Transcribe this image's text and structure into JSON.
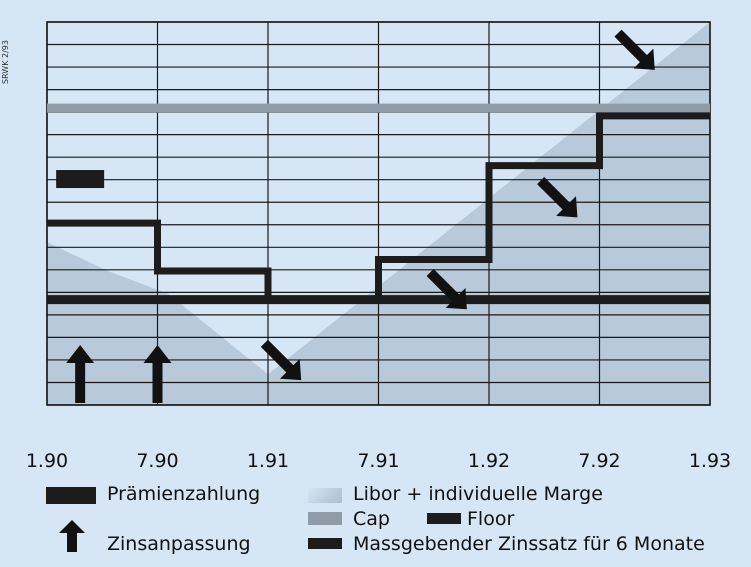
{
  "side_label": "SRWK 2/93",
  "colors": {
    "background": "#d6e6f4",
    "libor_area": "#b8c9da",
    "cap": "#8f9ba6",
    "floor": "#1c1c1c",
    "rate": "#1c1c1c",
    "grid": "#1a1a1a"
  },
  "chart_data": {
    "type": "line",
    "title": "",
    "xlabel": "",
    "ylabel": "",
    "x_ticks": [
      "1.90",
      "7.90",
      "1.91",
      "7.91",
      "1.92",
      "7.92",
      "1.93"
    ],
    "xlim": [
      0,
      6
    ],
    "ylim": [
      0,
      20
    ],
    "grid": true,
    "series": [
      {
        "name": "Libor + individuelle Marge",
        "style": "area",
        "x": [
          0,
          0.55,
          1.1,
          2.0,
          6.0
        ],
        "y": [
          8.5,
          7.0,
          5.8,
          1.6,
          20.0
        ]
      },
      {
        "name": "Cap",
        "style": "hline",
        "y": 15.5
      },
      {
        "name": "Floor",
        "style": "hline",
        "y": 5.5
      },
      {
        "name": "Massgebender Zinssatz für 6 Monate",
        "style": "step",
        "x": [
          0,
          1,
          2,
          3,
          4,
          5,
          6
        ],
        "y": [
          9.5,
          7.0,
          5.5,
          7.6,
          12.5,
          15.1,
          15.1
        ]
      }
    ],
    "markers": {
      "praemienzahlung": [
        {
          "x": 0.3,
          "y": 11.8
        }
      ],
      "zinsanpassung": [
        {
          "x": 0.3
        },
        {
          "x": 1.0
        }
      ],
      "pointer_arrows": [
        {
          "x": 5.5,
          "y": 17.5
        },
        {
          "x": 4.8,
          "y": 9.8
        },
        {
          "x": 3.8,
          "y": 5.0
        },
        {
          "x": 2.3,
          "y": 1.3
        }
      ]
    }
  },
  "legend": {
    "praemie": "Prämienzahlung",
    "zins": "Zinsanpassung",
    "libor": "Libor + individuelle Marge",
    "cap": "Cap",
    "floor": "Floor",
    "mass": "Massgebender Zinssatz für 6 Monate"
  }
}
